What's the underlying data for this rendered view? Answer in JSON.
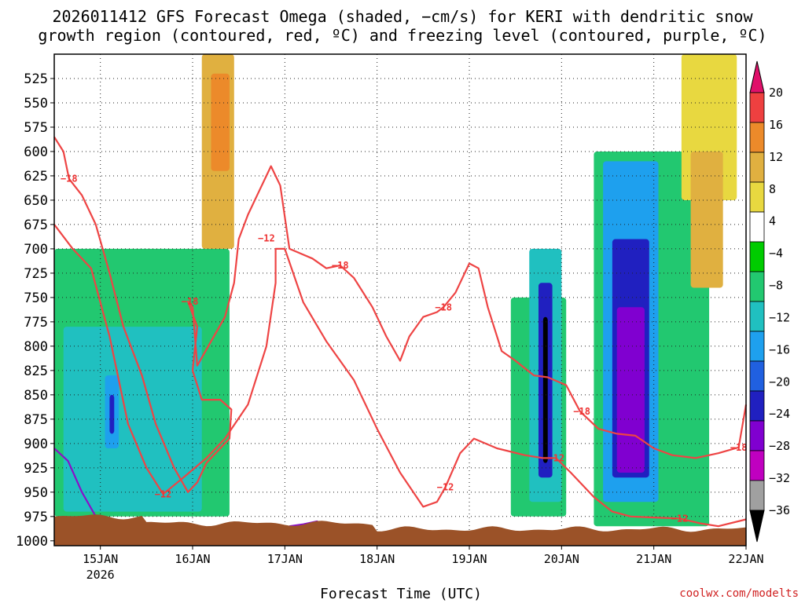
{
  "chart_data": {
    "type": "heatmap",
    "title_line1": "2026011412 GFS Forecast Omega (shaded, −cm/s) for KERI with dendritic snow",
    "title_line2": "growth region (contoured, red, ºC) and freezing level (contoured, purple, ºC)",
    "xlabel": "Forecast Time (UTC)",
    "credit": "coolwx.com/modelts",
    "ylabel": "",
    "y_ticks": [
      525,
      550,
      575,
      600,
      625,
      650,
      675,
      700,
      725,
      750,
      775,
      800,
      825,
      850,
      875,
      900,
      925,
      950,
      975,
      1000
    ],
    "ylim": [
      500,
      1005
    ],
    "x_ticks": [
      {
        "label": "15JAN",
        "sub": "2026",
        "day": 15
      },
      {
        "label": "16JAN",
        "sub": "",
        "day": 16
      },
      {
        "label": "17JAN",
        "sub": "",
        "day": 17
      },
      {
        "label": "18JAN",
        "sub": "",
        "day": 18
      },
      {
        "label": "19JAN",
        "sub": "",
        "day": 19
      },
      {
        "label": "20JAN",
        "sub": "",
        "day": 20
      },
      {
        "label": "21JAN",
        "sub": "",
        "day": 21
      },
      {
        "label": "22JAN",
        "sub": "",
        "day": 22
      }
    ],
    "xlim_days": [
      14.5,
      22.0
    ],
    "colorbar": {
      "labels": [
        "20",
        "16",
        "12",
        "8",
        "4",
        "−4",
        "−8",
        "−12",
        "−16",
        "−20",
        "−24",
        "−28",
        "−32",
        "−36"
      ],
      "colors": [
        "#e8103a",
        "#ee4040",
        "#ec8a2a",
        "#e0b040",
        "#e8d840",
        "#ffffff",
        "#00cc00",
        "#22c870",
        "#20c0c0",
        "#1ea0ee",
        "#2060e0",
        "#2020c0",
        "#8000d0",
        "#c000c0",
        "#a0a0a0",
        "#000000"
      ]
    },
    "contour_labels": [
      {
        "text": "−18",
        "day": 14.66,
        "p": 628
      },
      {
        "text": "−12",
        "day": 15.68,
        "p": 952
      },
      {
        "text": "−18",
        "day": 15.97,
        "p": 754
      },
      {
        "text": "−12",
        "day": 16.8,
        "p": 689
      },
      {
        "text": "−18",
        "day": 17.6,
        "p": 717
      },
      {
        "text": "−18",
        "day": 18.72,
        "p": 760
      },
      {
        "text": "−12",
        "day": 18.74,
        "p": 945
      },
      {
        "text": "−12",
        "day": 19.94,
        "p": 915
      },
      {
        "text": "−18",
        "day": 20.22,
        "p": 867
      },
      {
        "text": "−12",
        "day": 21.28,
        "p": 977
      },
      {
        "text": "−18",
        "day": 21.92,
        "p": 904
      }
    ],
    "series": [
      {
        "name": "dgz -18 C (upper)",
        "color": "#ee4444",
        "points": [
          [
            14.5,
            585
          ],
          [
            14.6,
            600
          ],
          [
            14.66,
            628
          ],
          [
            14.8,
            645
          ],
          [
            14.95,
            675
          ],
          [
            15.1,
            725
          ],
          [
            15.25,
            780
          ],
          [
            15.45,
            830
          ],
          [
            15.6,
            880
          ],
          [
            15.8,
            925
          ],
          [
            15.95,
            950
          ],
          [
            16.05,
            940
          ],
          [
            16.15,
            920
          ],
          [
            16.3,
            905
          ],
          [
            16.4,
            895
          ],
          [
            16.42,
            865
          ],
          [
            16.3,
            855
          ],
          [
            16.1,
            855
          ],
          [
            16.0,
            825
          ],
          [
            16.05,
            780
          ],
          [
            15.95,
            754
          ],
          [
            16.0,
            760
          ],
          [
            16.05,
            820
          ],
          [
            16.2,
            795
          ],
          [
            16.35,
            770
          ],
          [
            16.45,
            735
          ],
          [
            16.5,
            690
          ],
          [
            16.6,
            665
          ],
          [
            16.7,
            645
          ],
          [
            16.85,
            615
          ],
          [
            16.95,
            635
          ],
          [
            17.05,
            700
          ],
          [
            17.3,
            710
          ],
          [
            17.45,
            720
          ],
          [
            17.6,
            717
          ],
          [
            17.75,
            730
          ],
          [
            17.95,
            760
          ],
          [
            18.1,
            790
          ],
          [
            18.25,
            815
          ],
          [
            18.35,
            790
          ],
          [
            18.5,
            770
          ],
          [
            18.65,
            765
          ],
          [
            18.72,
            760
          ],
          [
            18.85,
            745
          ],
          [
            19.0,
            715
          ],
          [
            19.1,
            720
          ],
          [
            19.2,
            760
          ],
          [
            19.35,
            805
          ],
          [
            19.5,
            815
          ],
          [
            19.7,
            830
          ],
          [
            19.85,
            832
          ],
          [
            20.05,
            840
          ],
          [
            20.2,
            867
          ],
          [
            20.4,
            885
          ],
          [
            20.6,
            890
          ],
          [
            20.8,
            892
          ],
          [
            21.0,
            905
          ],
          [
            21.2,
            912
          ],
          [
            21.45,
            915
          ],
          [
            21.7,
            910
          ],
          [
            21.92,
            904
          ],
          [
            22.0,
            860
          ]
        ]
      },
      {
        "name": "dgz -12 C (lower)",
        "color": "#ee4444",
        "points": [
          [
            14.5,
            675
          ],
          [
            14.7,
            700
          ],
          [
            14.9,
            720
          ],
          [
            15.1,
            790
          ],
          [
            15.3,
            880
          ],
          [
            15.5,
            925
          ],
          [
            15.68,
            952
          ],
          [
            15.9,
            935
          ],
          [
            16.15,
            915
          ],
          [
            16.35,
            895
          ],
          [
            16.6,
            860
          ],
          [
            16.8,
            800
          ],
          [
            16.9,
            735
          ],
          [
            16.9,
            700
          ],
          [
            17.0,
            700
          ],
          [
            17.2,
            755
          ],
          [
            17.45,
            795
          ],
          [
            17.75,
            835
          ],
          [
            18.0,
            885
          ],
          [
            18.25,
            930
          ],
          [
            18.5,
            965
          ],
          [
            18.65,
            960
          ],
          [
            18.74,
            945
          ],
          [
            18.9,
            910
          ],
          [
            19.05,
            895
          ],
          [
            19.3,
            905
          ],
          [
            19.6,
            912
          ],
          [
            19.8,
            915
          ],
          [
            19.94,
            915
          ],
          [
            20.1,
            930
          ],
          [
            20.35,
            955
          ],
          [
            20.55,
            970
          ],
          [
            20.75,
            975
          ],
          [
            21.0,
            976
          ],
          [
            21.28,
            977
          ],
          [
            21.5,
            982
          ],
          [
            21.7,
            985
          ],
          [
            22.0,
            978
          ]
        ]
      },
      {
        "name": "freezing level 0 C",
        "color": "#8a10c8",
        "points": [
          [
            14.5,
            905
          ],
          [
            14.65,
            918
          ],
          [
            14.8,
            950
          ],
          [
            14.95,
            975
          ],
          [
            15.05,
            985
          ]
        ]
      },
      {
        "name": "freezing level 0 C (2)",
        "color": "#8a10c8",
        "points": [
          [
            17.05,
            985
          ],
          [
            17.2,
            983
          ],
          [
            17.35,
            980
          ],
          [
            17.45,
            988
          ]
        ]
      }
    ],
    "omega_regions": [
      {
        "name": "rise15",
        "value": -8,
        "day0": 14.5,
        "day1": 16.4,
        "p0": 700,
        "p1": 975
      },
      {
        "name": "rise15b",
        "value": -12,
        "day0": 14.6,
        "day1": 16.1,
        "p0": 780,
        "p1": 970
      },
      {
        "name": "rise15c",
        "value": -16,
        "day0": 15.05,
        "day1": 15.2,
        "p0": 830,
        "p1": 905
      },
      {
        "name": "rise15d",
        "value": -24,
        "day0": 15.1,
        "day1": 15.15,
        "p0": 850,
        "p1": 890
      },
      {
        "name": "sink16",
        "value": 8,
        "day0": 16.1,
        "day1": 16.45,
        "p0": 500,
        "p1": 700
      },
      {
        "name": "sink16b",
        "value": 12,
        "day0": 16.2,
        "day1": 16.4,
        "p0": 520,
        "p1": 620
      },
      {
        "name": "rise20",
        "value": -8,
        "day0": 19.45,
        "day1": 20.05,
        "p0": 750,
        "p1": 975
      },
      {
        "name": "rise20b",
        "value": -12,
        "day0": 19.65,
        "day1": 20.0,
        "p0": 700,
        "p1": 960
      },
      {
        "name": "rise20c",
        "value": -24,
        "day0": 19.75,
        "day1": 19.9,
        "p0": 735,
        "p1": 935
      },
      {
        "name": "rise20d",
        "value": -36,
        "day0": 19.8,
        "day1": 19.85,
        "p0": 770,
        "p1": 920
      },
      {
        "name": "rise21",
        "value": -8,
        "day0": 20.35,
        "day1": 21.6,
        "p0": 600,
        "p1": 985
      },
      {
        "name": "rise21b",
        "value": -16,
        "day0": 20.45,
        "day1": 21.05,
        "p0": 610,
        "p1": 960
      },
      {
        "name": "rise21c",
        "value": -24,
        "day0": 20.55,
        "day1": 20.95,
        "p0": 690,
        "p1": 935
      },
      {
        "name": "rise21d",
        "value": -28,
        "day0": 20.6,
        "day1": 20.9,
        "p0": 760,
        "p1": 930
      },
      {
        "name": "sink21",
        "value": 4,
        "day0": 21.3,
        "day1": 21.9,
        "p0": 500,
        "p1": 650
      },
      {
        "name": "sink21b",
        "value": 8,
        "day0": 21.4,
        "day1": 21.75,
        "p0": 600,
        "p1": 740
      }
    ]
  }
}
